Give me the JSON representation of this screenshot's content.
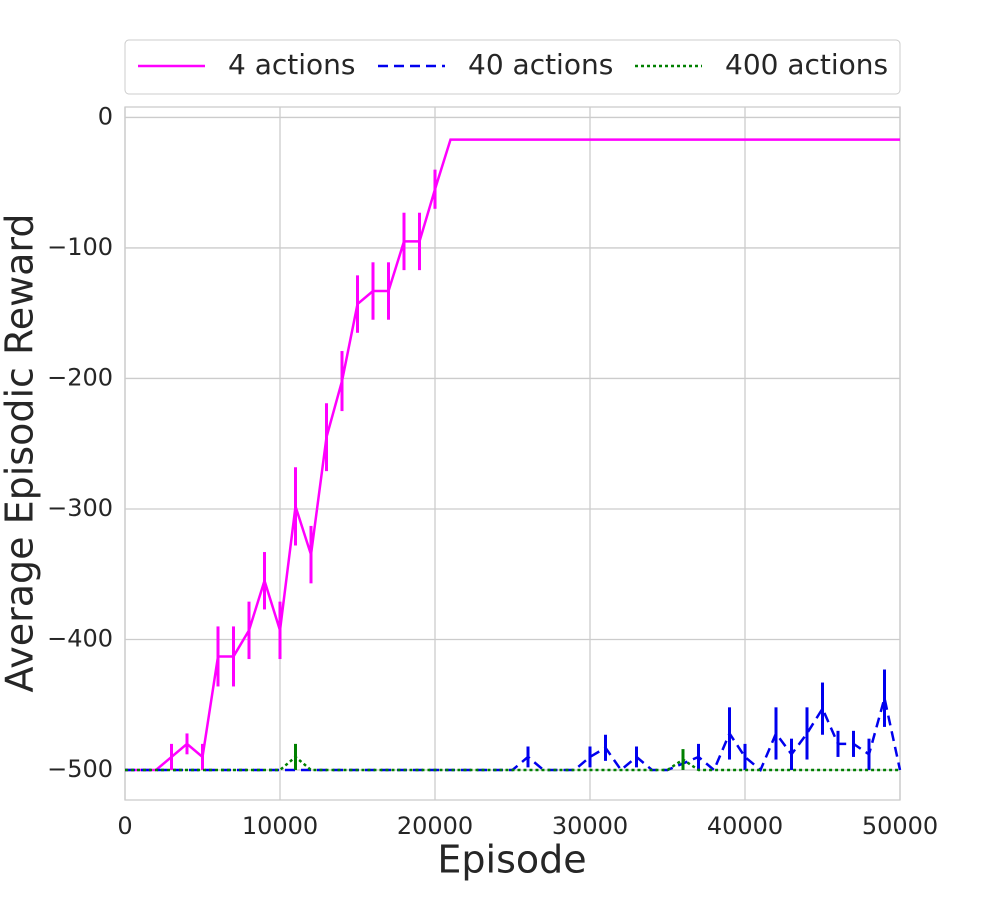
{
  "chart_data": {
    "type": "line",
    "xlabel": "Episode",
    "ylabel": "Average Episodic Reward",
    "x": [
      0,
      1000,
      2000,
      3000,
      4000,
      5000,
      6000,
      7000,
      8000,
      9000,
      10000,
      11000,
      12000,
      13000,
      14000,
      15000,
      16000,
      17000,
      18000,
      19000,
      20000,
      21000,
      22000,
      23000,
      24000,
      25000,
      26000,
      27000,
      28000,
      29000,
      30000,
      31000,
      32000,
      33000,
      34000,
      35000,
      36000,
      37000,
      38000,
      39000,
      40000,
      41000,
      42000,
      43000,
      44000,
      45000,
      46000,
      47000,
      48000,
      49000,
      50000
    ],
    "series": [
      {
        "name": "4 actions",
        "color": "#ff00ff",
        "style": "solid",
        "values": [
          -500,
          -500,
          -500,
          -490,
          -480,
          -490,
          -413,
          -413,
          -393,
          -355,
          -393,
          -298,
          -335,
          -245,
          -202,
          -143,
          -133,
          -133,
          -95,
          -95,
          -55,
          -17,
          -17,
          -17,
          -17,
          -17,
          -17,
          -17,
          -17,
          -17,
          -17,
          -17,
          -17,
          -17,
          -17,
          -17,
          -17,
          -17,
          -17,
          -17,
          -17,
          -17,
          -17,
          -17,
          -17,
          -17,
          -17,
          -17,
          -17,
          -17,
          -17
        ],
        "errors": [
          0,
          0,
          0,
          10,
          8,
          10,
          23,
          23,
          22,
          22,
          22,
          30,
          22,
          26,
          23,
          22,
          22,
          22,
          22,
          22,
          15,
          0,
          0,
          0,
          0,
          0,
          0,
          0,
          0,
          0,
          0,
          0,
          0,
          0,
          0,
          0,
          0,
          0,
          0,
          0,
          0,
          0,
          0,
          0,
          0,
          0,
          0,
          0,
          0,
          0,
          0
        ]
      },
      {
        "name": "40 actions",
        "color": "#0000ee",
        "style": "dashed",
        "values": [
          -500,
          -500,
          -500,
          -500,
          -500,
          -500,
          -500,
          -500,
          -500,
          -500,
          -500,
          -500,
          -500,
          -500,
          -500,
          -500,
          -500,
          -500,
          -500,
          -500,
          -500,
          -500,
          -500,
          -500,
          -500,
          -500,
          -490,
          -500,
          -500,
          -500,
          -490,
          -483,
          -500,
          -490,
          -500,
          -500,
          -495,
          -490,
          -500,
          -472,
          -490,
          -500,
          -472,
          -488,
          -472,
          -453,
          -480,
          -480,
          -488,
          -445,
          -500
        ],
        "errors": [
          0,
          0,
          0,
          0,
          0,
          0,
          0,
          0,
          0,
          0,
          0,
          0,
          0,
          0,
          0,
          0,
          0,
          0,
          0,
          0,
          0,
          0,
          0,
          0,
          0,
          0,
          8,
          0,
          0,
          0,
          8,
          10,
          0,
          8,
          0,
          0,
          0,
          10,
          0,
          20,
          10,
          0,
          20,
          12,
          20,
          20,
          10,
          10,
          12,
          22,
          0
        ]
      },
      {
        "name": "400 actions",
        "color": "#008000",
        "style": "dotted",
        "values": [
          -500,
          -500,
          -500,
          -500,
          -500,
          -500,
          -500,
          -500,
          -500,
          -500,
          -500,
          -490,
          -500,
          -500,
          -500,
          -500,
          -500,
          -500,
          -500,
          -500,
          -500,
          -500,
          -500,
          -500,
          -500,
          -500,
          -500,
          -500,
          -500,
          -500,
          -500,
          -500,
          -500,
          -500,
          -500,
          -500,
          -492,
          -500,
          -500,
          -500,
          -500,
          -500,
          -500,
          -500,
          -500,
          -500,
          -500,
          -500,
          -500,
          -500,
          -500
        ],
        "errors": [
          0,
          0,
          0,
          0,
          0,
          0,
          0,
          0,
          0,
          0,
          0,
          10,
          0,
          0,
          0,
          0,
          0,
          0,
          0,
          0,
          0,
          0,
          0,
          0,
          0,
          0,
          0,
          0,
          0,
          0,
          0,
          0,
          0,
          0,
          0,
          0,
          8,
          0,
          0,
          0,
          0,
          0,
          0,
          0,
          0,
          0,
          0,
          0,
          0,
          0,
          0
        ]
      }
    ],
    "xlim": [
      0,
      50000
    ],
    "ylim": [
      -523,
      8
    ],
    "xticks": [
      0,
      10000,
      20000,
      30000,
      40000,
      50000
    ],
    "yticks": [
      {
        "value": -500,
        "label": "−500"
      },
      {
        "value": -400,
        "label": "−400"
      },
      {
        "value": -300,
        "label": "−300"
      },
      {
        "value": -200,
        "label": "−200"
      },
      {
        "value": -100,
        "label": "−100"
      },
      0
    ],
    "grid": true,
    "legend": "top"
  }
}
